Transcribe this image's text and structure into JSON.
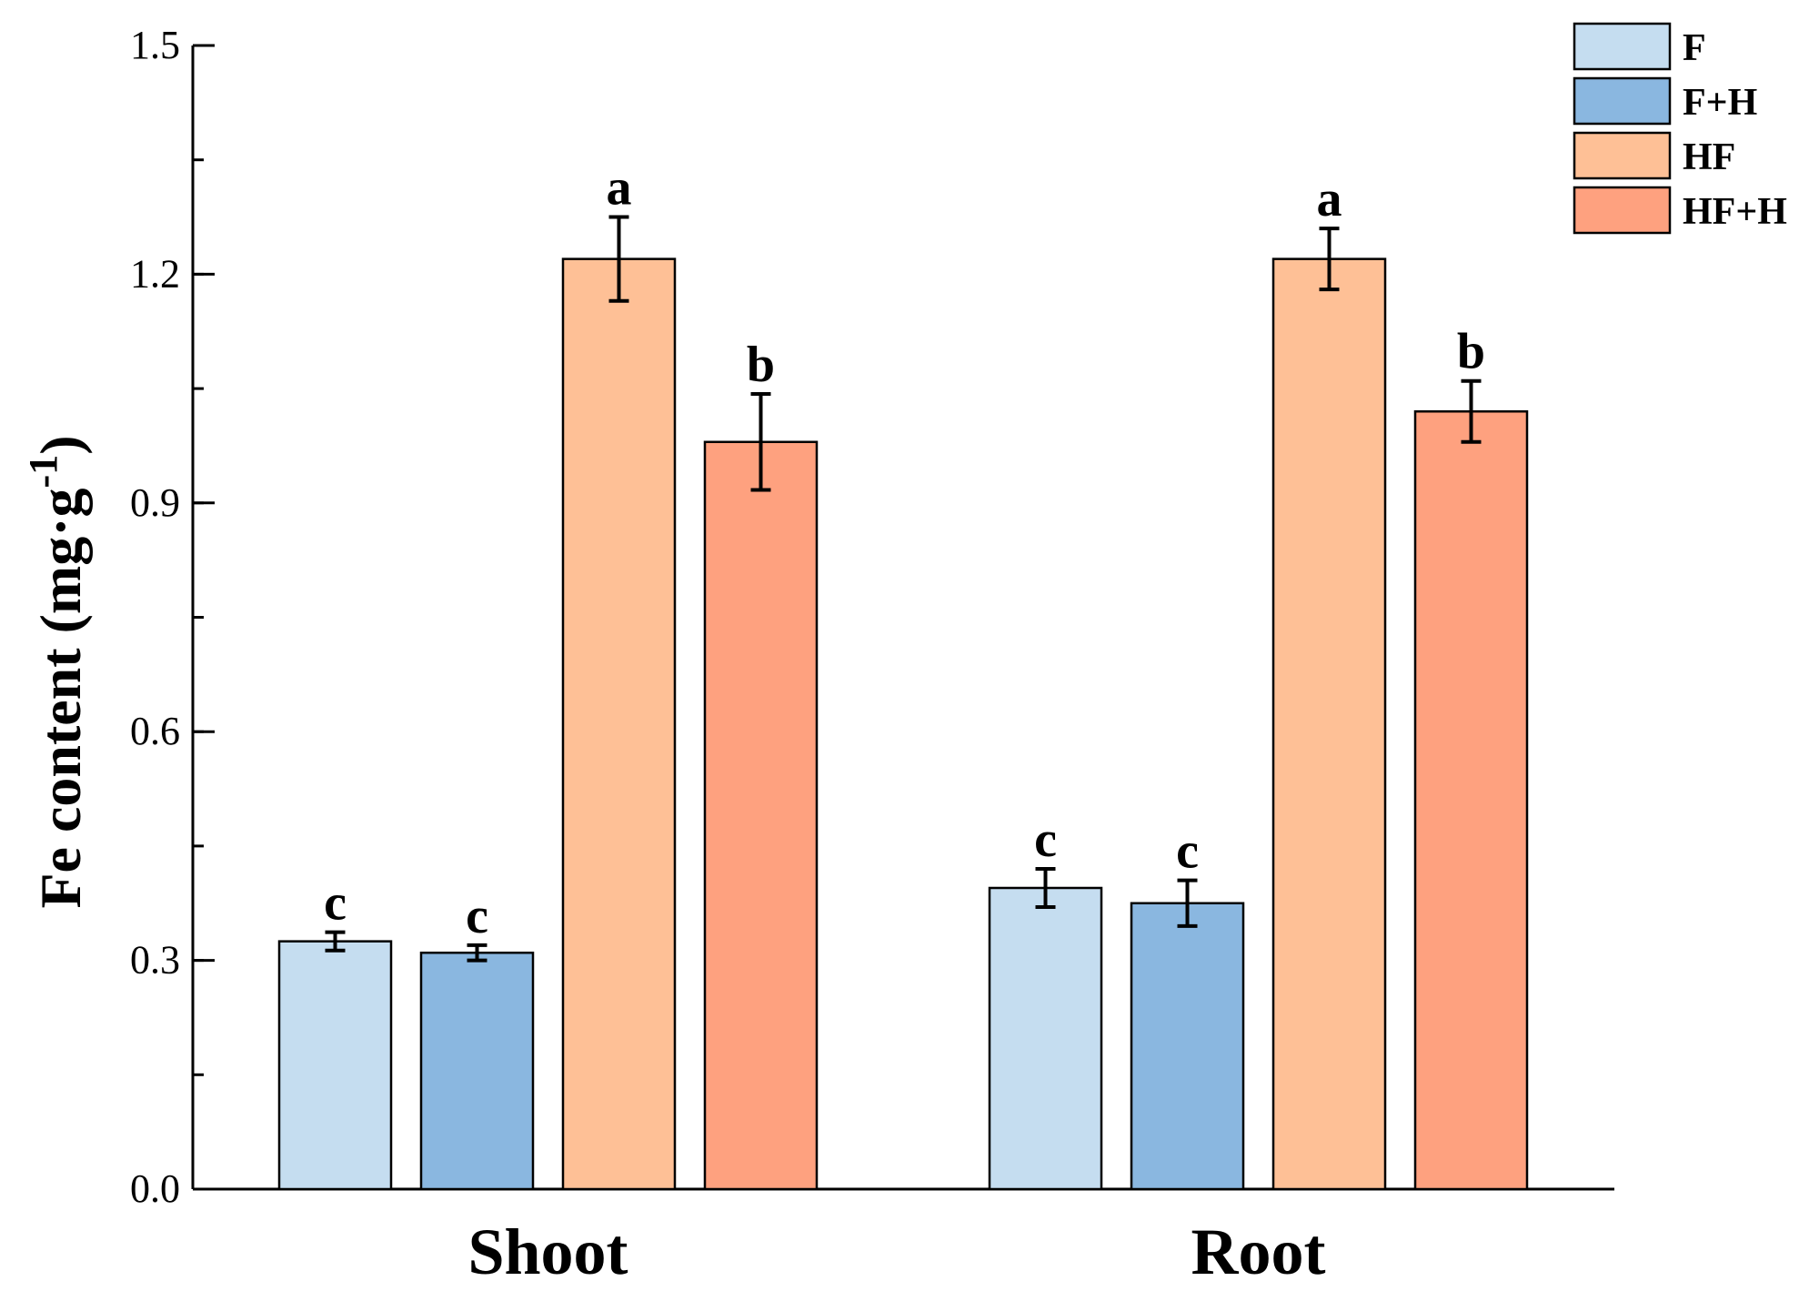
{
  "chart_data": {
    "type": "bar",
    "categories": [
      "Shoot",
      "Root"
    ],
    "ylabel": {
      "main": "Fe content (mg·g",
      "sup": "-1",
      "end": ")"
    },
    "ylim": [
      0,
      1.5
    ],
    "yticks": [
      "0.0",
      "0.3",
      "0.6",
      "0.9",
      "1.2",
      "1.5"
    ],
    "ytick_values": [
      0,
      0.3,
      0.6,
      0.9,
      1.2,
      1.5
    ],
    "minor_tick_step": 0.15,
    "grid": false,
    "legend_position": "top-right",
    "series": [
      {
        "name": "F",
        "color": "#c5ddf0",
        "values": [
          0.325,
          0.395
        ],
        "errors": [
          0.012,
          0.025
        ],
        "labels": [
          "c",
          "c"
        ]
      },
      {
        "name": "F+H",
        "color": "#8ab7e0",
        "values": [
          0.31,
          0.375
        ],
        "errors": [
          0.01,
          0.03
        ],
        "labels": [
          "c",
          "c"
        ]
      },
      {
        "name": "HF",
        "color": "#fec096",
        "values": [
          1.22,
          1.22
        ],
        "errors": [
          0.055,
          0.04
        ],
        "labels": [
          "a",
          "a"
        ]
      },
      {
        "name": "HF+H",
        "color": "#fea17f",
        "values": [
          0.98,
          1.02
        ],
        "errors": [
          0.063,
          0.04
        ],
        "labels": [
          "b",
          "b"
        ]
      }
    ]
  }
}
